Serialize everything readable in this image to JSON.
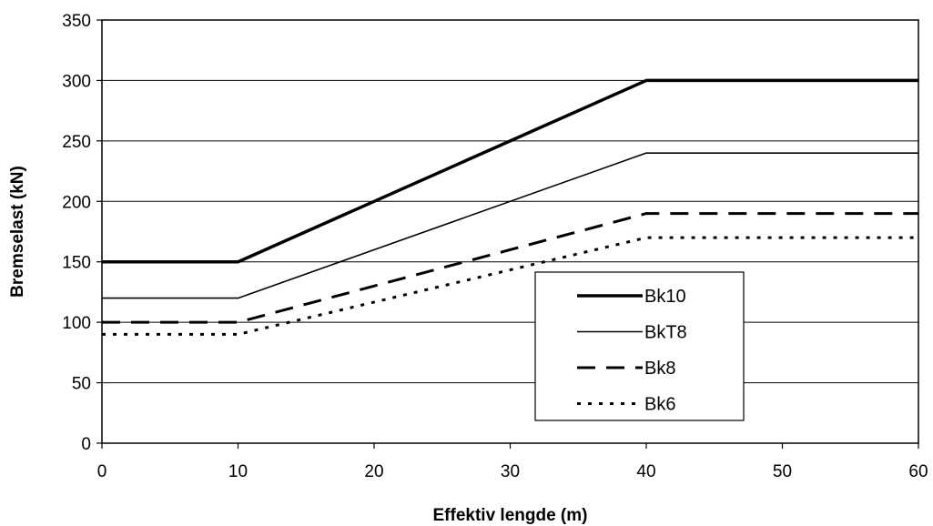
{
  "chart_data": {
    "type": "line",
    "title": "",
    "xlabel": "Effektiv lengde (m)",
    "ylabel": "Bremselast (kN)",
    "xlim": [
      0,
      60
    ],
    "ylim": [
      0,
      350
    ],
    "xticks": [
      0,
      10,
      20,
      30,
      40,
      50,
      60
    ],
    "yticks": [
      0,
      50,
      100,
      150,
      200,
      250,
      300,
      350
    ],
    "grid": "horizontal",
    "legend_position": "center-right",
    "series": [
      {
        "name": "Bk10",
        "style": "solid-thick",
        "color": "#000000",
        "x": [
          0,
          10,
          40,
          60
        ],
        "y": [
          150,
          150,
          300,
          300
        ]
      },
      {
        "name": "BkT8",
        "style": "solid-thin",
        "color": "#000000",
        "x": [
          0,
          10,
          40,
          60
        ],
        "y": [
          120,
          120,
          240,
          240
        ]
      },
      {
        "name": "Bk8",
        "style": "dashed",
        "color": "#000000",
        "x": [
          0,
          10,
          40,
          60
        ],
        "y": [
          100,
          100,
          190,
          190
        ]
      },
      {
        "name": "Bk6",
        "style": "dotted",
        "color": "#000000",
        "x": [
          0,
          10,
          40,
          60
        ],
        "y": [
          90,
          90,
          170,
          170
        ]
      }
    ]
  }
}
